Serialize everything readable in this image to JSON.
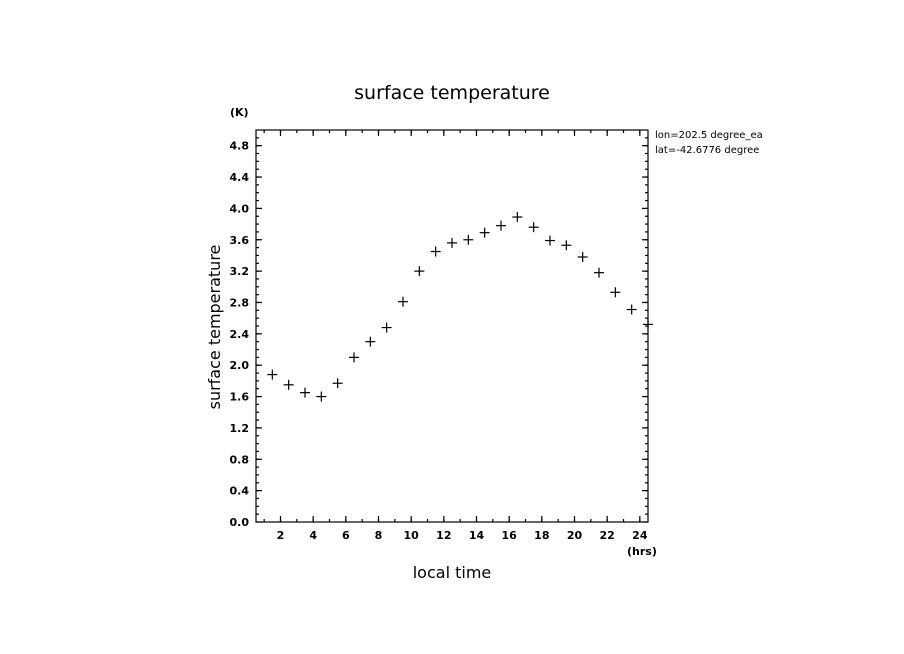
{
  "chart_data": {
    "type": "scatter",
    "title": "surface temperature",
    "xlabel": "local time",
    "ylabel": "surface temperature",
    "x_unit": "(hrs)",
    "y_unit": "(K)",
    "xlim": [
      0.5,
      24.5
    ],
    "ylim": [
      0,
      5.0
    ],
    "x_ticks": [
      2,
      4,
      6,
      8,
      10,
      12,
      14,
      16,
      18,
      20,
      22,
      24
    ],
    "y_ticks": [
      0.0,
      0.4,
      0.8,
      1.2,
      1.6,
      2.0,
      2.4,
      2.8,
      3.2,
      3.6,
      4.0,
      4.4,
      4.8
    ],
    "y_tick_labels": [
      "0.0",
      "0.4",
      "0.8",
      "1.2",
      "1.6",
      "2.0",
      "2.4",
      "2.8",
      "3.2",
      "3.6",
      "4.0",
      "4.4",
      "4.8"
    ],
    "grid": false,
    "marker": "plus",
    "annotations": [
      "lon=202.5 degree_ea",
      "lat=-42.6776 degree"
    ],
    "x": [
      1.5,
      2.5,
      3.5,
      4.5,
      5.5,
      6.5,
      7.5,
      8.5,
      9.5,
      10.5,
      11.5,
      12.5,
      13.5,
      14.5,
      15.5,
      16.5,
      17.5,
      18.5,
      19.5,
      20.5,
      21.5,
      22.5,
      23.5,
      24.5
    ],
    "y": [
      1.88,
      1.75,
      1.65,
      1.6,
      1.77,
      2.1,
      2.3,
      2.48,
      2.81,
      3.2,
      3.45,
      3.56,
      3.6,
      3.69,
      3.78,
      3.89,
      3.76,
      3.59,
      3.53,
      3.38,
      3.18,
      2.93,
      2.71,
      2.52
    ]
  }
}
